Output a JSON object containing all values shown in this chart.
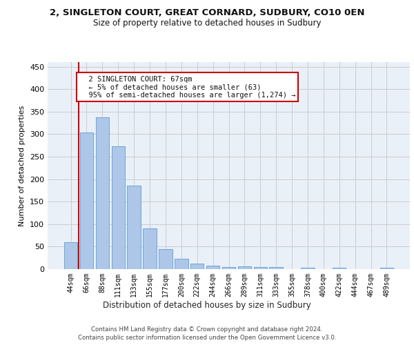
{
  "title1": "2, SINGLETON COURT, GREAT CORNARD, SUDBURY, CO10 0EN",
  "title2": "Size of property relative to detached houses in Sudbury",
  "xlabel": "Distribution of detached houses by size in Sudbury",
  "ylabel": "Number of detached properties",
  "bar_labels": [
    "44sqm",
    "66sqm",
    "88sqm",
    "111sqm",
    "133sqm",
    "155sqm",
    "177sqm",
    "200sqm",
    "222sqm",
    "244sqm",
    "266sqm",
    "289sqm",
    "311sqm",
    "333sqm",
    "355sqm",
    "378sqm",
    "400sqm",
    "422sqm",
    "444sqm",
    "467sqm",
    "489sqm"
  ],
  "bar_values": [
    60,
    303,
    338,
    273,
    185,
    90,
    45,
    23,
    12,
    8,
    5,
    6,
    4,
    4,
    0,
    3,
    0,
    3,
    0,
    0,
    3
  ],
  "bar_color": "#aec6e8",
  "bar_edgecolor": "#5a9fd4",
  "vline_color": "#cc0000",
  "annotation_text": "  2 SINGLETON COURT: 67sqm\n  ← 5% of detached houses are smaller (63)\n  95% of semi-detached houses are larger (1,274) →",
  "annotation_box_color": "#cc0000",
  "ylim": [
    0,
    460
  ],
  "yticks": [
    0,
    50,
    100,
    150,
    200,
    250,
    300,
    350,
    400,
    450
  ],
  "grid_color": "#cccccc",
  "bg_color": "#eaf0f8",
  "footer1": "Contains HM Land Registry data © Crown copyright and database right 2024.",
  "footer2": "Contains public sector information licensed under the Open Government Licence v3.0."
}
